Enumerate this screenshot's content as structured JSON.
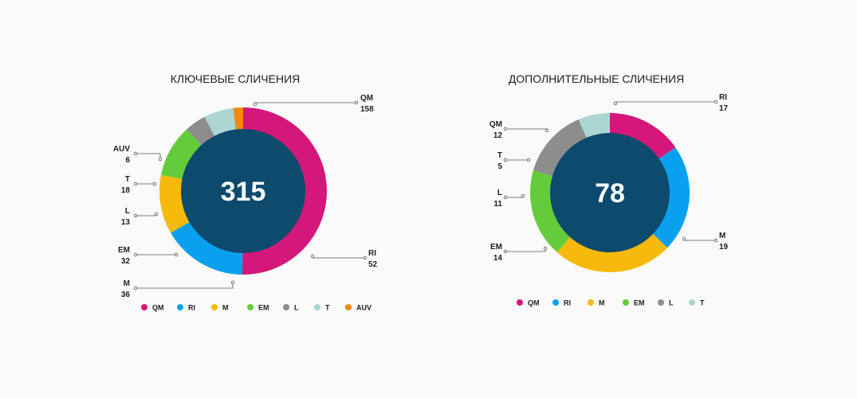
{
  "chart_data": [
    {
      "type": "pie",
      "title": "КЛЮЧЕВЫЕ СЛИЧЕНИЯ",
      "total": "315",
      "categories": [
        "QM",
        "RI",
        "M",
        "EM",
        "L",
        "T",
        "AUV"
      ],
      "values": [
        158,
        52,
        36,
        32,
        13,
        18,
        6
      ],
      "colors": [
        "#d4177a",
        "#0aa0f0",
        "#f7b90b",
        "#64cc3a",
        "#8d8d8d",
        "#acd6d2",
        "#f28a0e"
      ],
      "legend_position": "bottom"
    },
    {
      "type": "pie",
      "title": "ДОПОЛНИТЕЛЬНЫЕ СЛИЧЕНИЯ",
      "total": "78",
      "categories": [
        "QM",
        "RI",
        "M",
        "EM",
        "L",
        "T"
      ],
      "values": [
        12,
        17,
        19,
        14,
        11,
        5
      ],
      "colors": [
        "#d4177a",
        "#0aa0f0",
        "#f7b90b",
        "#64cc3a",
        "#8d8d8d",
        "#acd6d2"
      ],
      "legend_position": "bottom"
    }
  ]
}
